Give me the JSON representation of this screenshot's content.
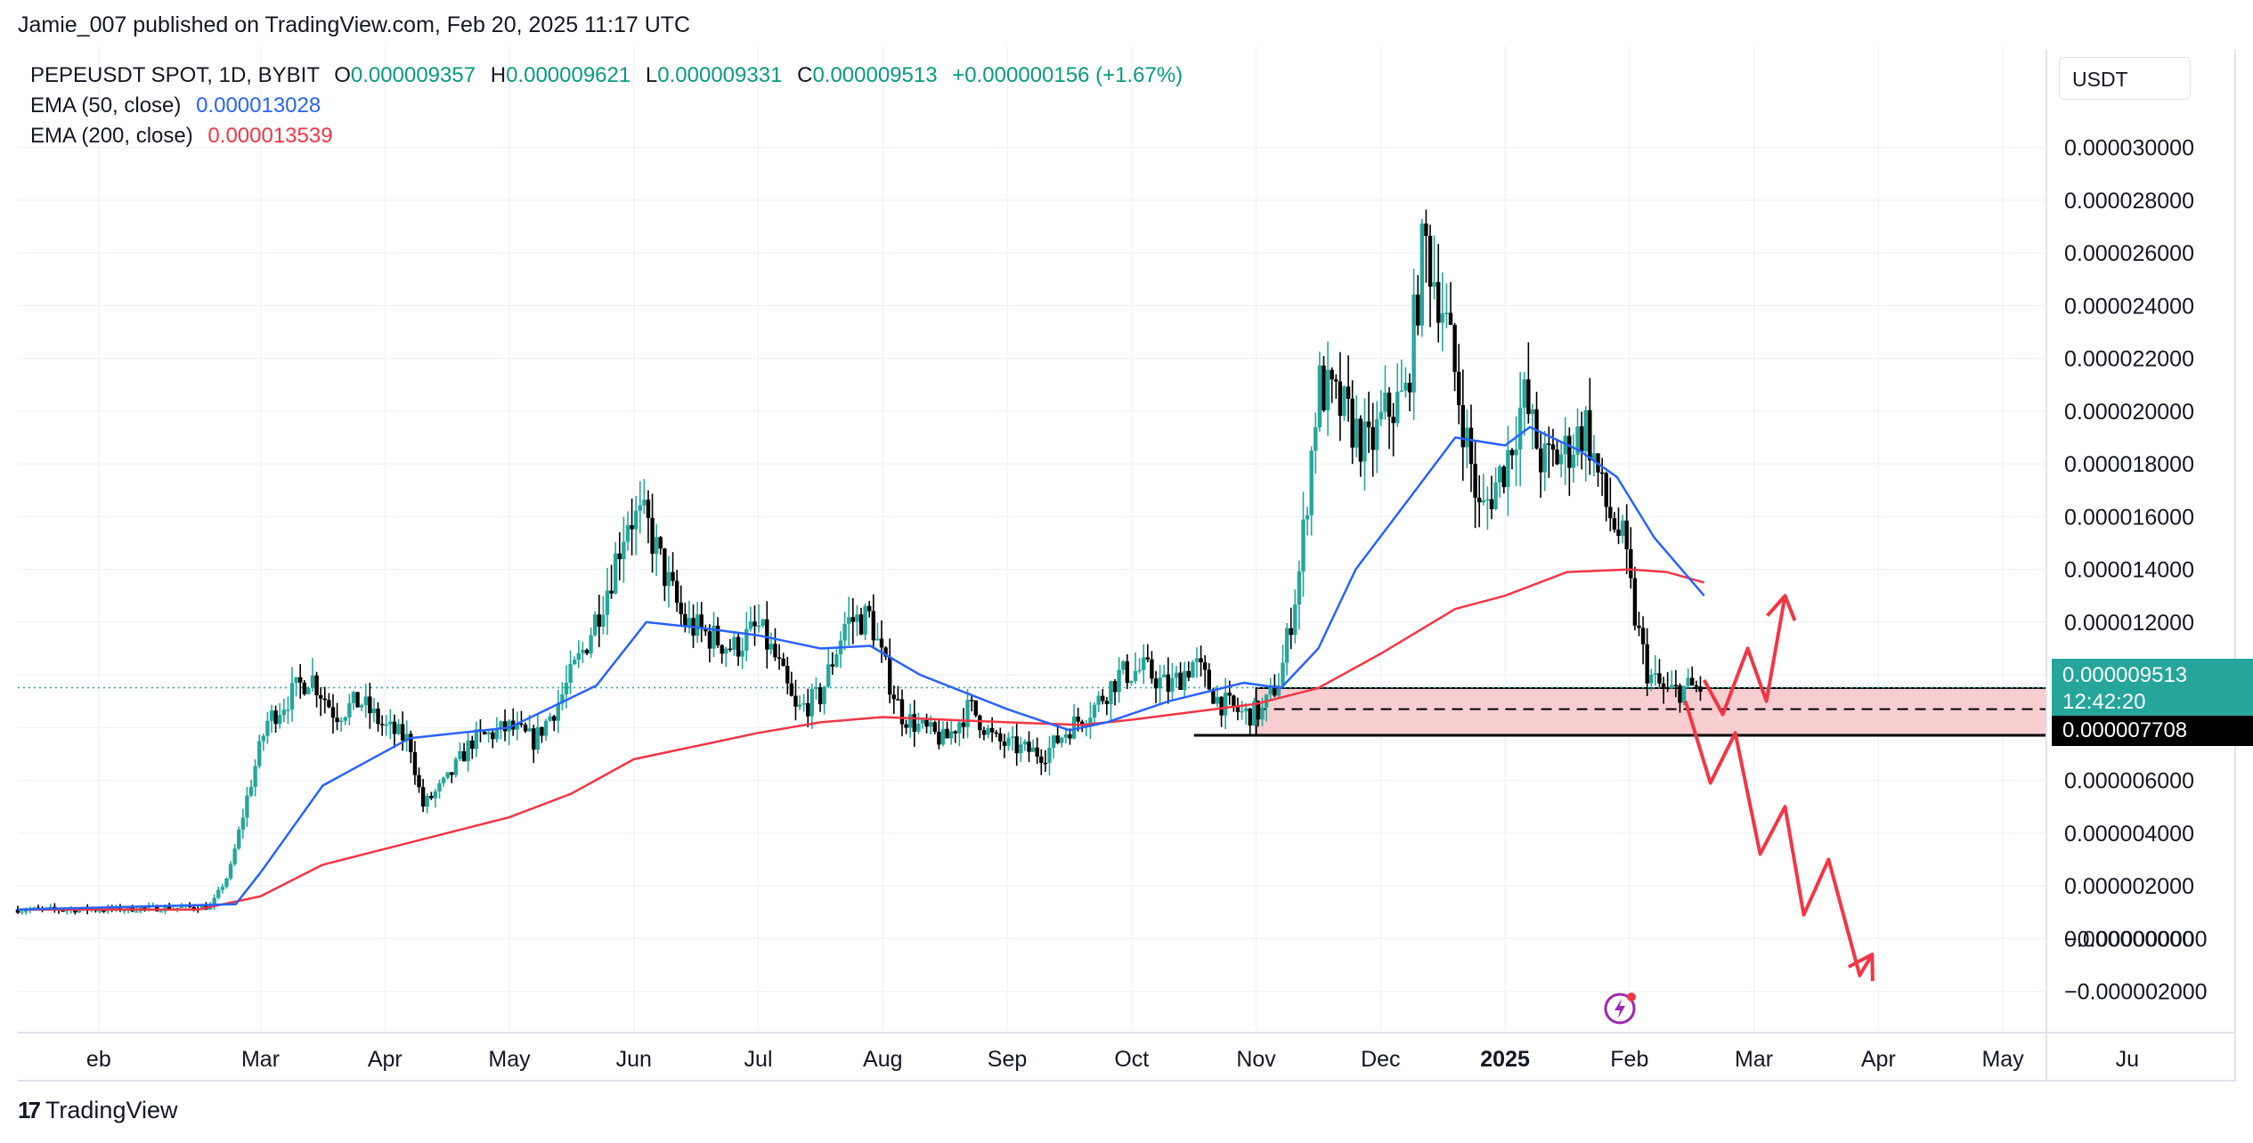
{
  "header": {
    "published": "Jamie_007 published on TradingView.com, Feb 20, 2025 11:17 UTC"
  },
  "legend": {
    "symbol": "PEPEUSDT SPOT, 1D, BYBIT",
    "o_key": "O",
    "o": "0.000009357",
    "h_key": "H",
    "h": "0.000009621",
    "l_key": "L",
    "l": "0.000009331",
    "c_key": "C",
    "c": "0.000009513",
    "change": "+0.000000156 (+1.67%)",
    "ema50_label": "EMA (50, close)",
    "ema50_value": "0.000013028",
    "ema200_label": "EMA (200, close)",
    "ema200_value": "0.000013539"
  },
  "currency": "USDT",
  "price_tags": {
    "last_price": "0.000009513",
    "countdown": "12:42:20",
    "level": "0.000007708"
  },
  "brand": {
    "name": "TradingView",
    "logo_mark": "17"
  },
  "colors": {
    "up": "#26a69a",
    "down": "#000000",
    "ema50": "#2962ff",
    "ema200": "#f23645",
    "zone": "#f7c6c9",
    "arrow": "#f23645"
  },
  "chart_data": {
    "type": "candlestick",
    "yaxis_ticks": [
      "0.000030000",
      "0.000028000",
      "0.000026000",
      "0.000024000",
      "0.000022000",
      "0.000020000",
      "0.000018000",
      "0.000016000",
      "0.000014000",
      "0.000012000",
      "0.000010000",
      "0.000008000",
      "0.000006000",
      "0.000004000",
      "0.000002000",
      "0.000000000",
      "−0.000000000",
      "−0.000002000"
    ],
    "yaxis_tick_values": [
      30,
      28,
      26,
      24,
      22,
      20,
      18,
      16,
      14,
      12,
      10,
      8,
      6,
      4,
      2,
      0,
      0,
      -2
    ],
    "yaxis_unit": "1e-6 USDT",
    "xaxis_ticks": [
      {
        "label": "eb",
        "t": -0.3
      },
      {
        "label": "Mar",
        "t": 1.0
      },
      {
        "label": "Apr",
        "t": 2.0
      },
      {
        "label": "May",
        "t": 3.0
      },
      {
        "label": "Jun",
        "t": 4.0
      },
      {
        "label": "Jul",
        "t": 5.0
      },
      {
        "label": "Aug",
        "t": 6.0
      },
      {
        "label": "Sep",
        "t": 7.0
      },
      {
        "label": "Oct",
        "t": 8.0
      },
      {
        "label": "Nov",
        "t": 9.0
      },
      {
        "label": "Dec",
        "t": 10.0
      },
      {
        "label": "2025",
        "t": 11.0,
        "bold": true
      },
      {
        "label": "Feb",
        "t": 12.0
      },
      {
        "label": "Mar",
        "t": 13.0
      },
      {
        "label": "Apr",
        "t": 14.0
      },
      {
        "label": "May",
        "t": 15.0
      },
      {
        "label": "Ju",
        "t": 16.0
      }
    ],
    "x_range": [
      -0.95,
      15.35
    ],
    "y_range": [
      -3.5,
      33.5
    ],
    "price_path": [
      [
        -0.95,
        1.1
      ],
      [
        -0.3,
        1.1
      ],
      [
        0.6,
        1.2
      ],
      [
        0.75,
        2.5
      ],
      [
        0.9,
        5.5
      ],
      [
        1.05,
        8.2
      ],
      [
        1.2,
        9.0
      ],
      [
        1.4,
        10.0
      ],
      [
        1.6,
        8.5
      ],
      [
        1.8,
        9.0
      ],
      [
        2.0,
        8.0
      ],
      [
        2.2,
        7.5
      ],
      [
        2.3,
        5.0
      ],
      [
        2.5,
        6.0
      ],
      [
        2.7,
        7.5
      ],
      [
        3.0,
        8.0
      ],
      [
        3.2,
        7.5
      ],
      [
        3.4,
        9.0
      ],
      [
        3.6,
        11.0
      ],
      [
        3.8,
        13.5
      ],
      [
        3.95,
        16.0
      ],
      [
        4.1,
        15.8
      ],
      [
        4.25,
        13.8
      ],
      [
        4.4,
        12.0
      ],
      [
        4.6,
        11.5
      ],
      [
        4.8,
        11.0
      ],
      [
        5.0,
        11.8
      ],
      [
        5.15,
        10.5
      ],
      [
        5.3,
        8.6
      ],
      [
        5.5,
        9.2
      ],
      [
        5.7,
        12.0
      ],
      [
        5.9,
        12.2
      ],
      [
        6.0,
        10.5
      ],
      [
        6.15,
        8.5
      ],
      [
        6.3,
        8.0
      ],
      [
        6.5,
        7.5
      ],
      [
        6.7,
        8.8
      ],
      [
        6.9,
        7.5
      ],
      [
        7.1,
        7.2
      ],
      [
        7.3,
        7.0
      ],
      [
        7.5,
        8.0
      ],
      [
        7.7,
        8.8
      ],
      [
        7.9,
        10.0
      ],
      [
        8.1,
        10.2
      ],
      [
        8.3,
        9.5
      ],
      [
        8.5,
        10.5
      ],
      [
        8.7,
        9.0
      ],
      [
        8.9,
        8.5
      ],
      [
        9.05,
        8.6
      ],
      [
        9.2,
        10.0
      ],
      [
        9.35,
        14.0
      ],
      [
        9.5,
        21.0
      ],
      [
        9.7,
        20.0
      ],
      [
        9.9,
        18.5
      ],
      [
        10.05,
        20.0
      ],
      [
        10.2,
        20.5
      ],
      [
        10.35,
        26.5
      ],
      [
        10.5,
        24.0
      ],
      [
        10.65,
        20.0
      ],
      [
        10.8,
        16.0
      ],
      [
        11.0,
        18.0
      ],
      [
        11.15,
        20.5
      ],
      [
        11.3,
        18.0
      ],
      [
        11.5,
        18.5
      ],
      [
        11.65,
        19.5
      ],
      [
        11.8,
        16.5
      ],
      [
        11.95,
        15.0
      ],
      [
        12.05,
        12.0
      ],
      [
        12.15,
        10.0
      ],
      [
        12.3,
        9.3
      ],
      [
        12.45,
        9.5
      ],
      [
        12.6,
        9.5
      ]
    ],
    "ema50": [
      [
        -0.95,
        1.1
      ],
      [
        0.8,
        1.3
      ],
      [
        1.0,
        2.5
      ],
      [
        1.5,
        5.8
      ],
      [
        2.2,
        7.6
      ],
      [
        3.0,
        8.0
      ],
      [
        3.7,
        9.6
      ],
      [
        4.1,
        12.0
      ],
      [
        4.5,
        11.8
      ],
      [
        5.0,
        11.5
      ],
      [
        5.5,
        11.0
      ],
      [
        5.9,
        11.1
      ],
      [
        6.3,
        10.0
      ],
      [
        7.0,
        8.7
      ],
      [
        7.5,
        7.9
      ],
      [
        7.8,
        8.2
      ],
      [
        8.3,
        9.0
      ],
      [
        8.9,
        9.7
      ],
      [
        9.2,
        9.5
      ],
      [
        9.5,
        11.0
      ],
      [
        9.8,
        14.0
      ],
      [
        10.2,
        16.5
      ],
      [
        10.6,
        19.0
      ],
      [
        11.0,
        18.7
      ],
      [
        11.2,
        19.4
      ],
      [
        11.6,
        18.5
      ],
      [
        11.9,
        17.5
      ],
      [
        12.2,
        15.2
      ],
      [
        12.6,
        13.0
      ]
    ],
    "ema200": [
      [
        -0.95,
        1.1
      ],
      [
        0.5,
        1.1
      ],
      [
        1.0,
        1.6
      ],
      [
        1.5,
        2.8
      ],
      [
        2.5,
        4.0
      ],
      [
        3.0,
        4.6
      ],
      [
        3.5,
        5.5
      ],
      [
        4.0,
        6.8
      ],
      [
        4.5,
        7.3
      ],
      [
        5.0,
        7.8
      ],
      [
        5.5,
        8.2
      ],
      [
        6.0,
        8.4
      ],
      [
        6.5,
        8.3
      ],
      [
        7.0,
        8.2
      ],
      [
        7.6,
        8.1
      ],
      [
        8.0,
        8.3
      ],
      [
        8.5,
        8.6
      ],
      [
        9.0,
        8.9
      ],
      [
        9.5,
        9.5
      ],
      [
        10.0,
        10.8
      ],
      [
        10.6,
        12.5
      ],
      [
        11.0,
        13.0
      ],
      [
        11.5,
        13.9
      ],
      [
        12.0,
        14.0
      ],
      [
        12.3,
        13.9
      ],
      [
        12.6,
        13.5
      ]
    ],
    "support_zone": {
      "top": 9.5,
      "bottom": 7.7,
      "mid": 8.7,
      "start": 9.0,
      "end": 15.35
    },
    "support_line": {
      "level": 7.708,
      "start": 8.5,
      "end": 15.35
    },
    "last_price_value": 9.513,
    "projection_up": [
      [
        12.6,
        9.8
      ],
      [
        12.75,
        8.5
      ],
      [
        12.95,
        11.0
      ],
      [
        13.1,
        9.0
      ],
      [
        13.25,
        13.0
      ]
    ],
    "projection_down": [
      [
        12.45,
        9.0
      ],
      [
        12.65,
        5.9
      ],
      [
        12.85,
        7.8
      ],
      [
        13.05,
        3.2
      ],
      [
        13.25,
        5.0
      ],
      [
        13.4,
        0.9
      ],
      [
        13.6,
        3.0
      ],
      [
        13.85,
        -1.4
      ],
      [
        13.95,
        -0.6
      ]
    ]
  }
}
